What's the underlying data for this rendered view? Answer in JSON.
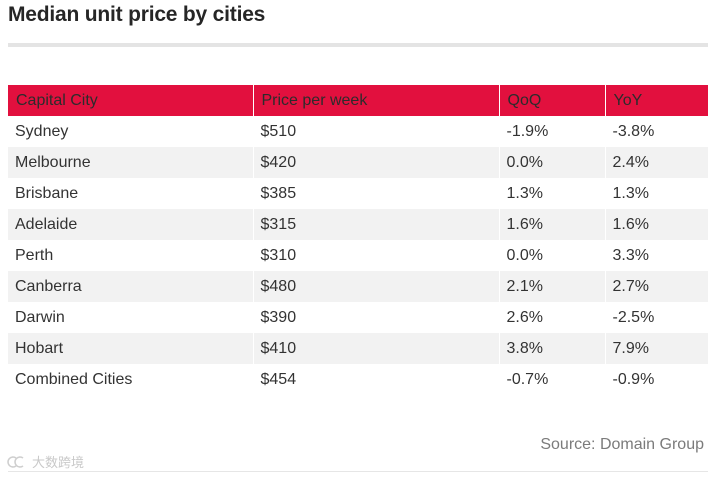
{
  "title": "Median unit price by cities",
  "table": {
    "headers": [
      "Capital City",
      "Price per week",
      "QoQ",
      "YoY"
    ],
    "rows": [
      [
        "Sydney",
        "$510",
        "-1.9%",
        "-3.8%"
      ],
      [
        "Melbourne",
        "$420",
        "0.0%",
        "2.4%"
      ],
      [
        "Brisbane",
        "$385",
        "1.3%",
        "1.3%"
      ],
      [
        "Adelaide",
        "$315",
        "1.6%",
        "1.6%"
      ],
      [
        "Perth",
        "$310",
        "0.0%",
        "3.3%"
      ],
      [
        "Canberra",
        "$480",
        "2.1%",
        "2.7%"
      ],
      [
        "Darwin",
        "$390",
        "2.6%",
        "-2.5%"
      ],
      [
        "Hobart",
        "$410",
        "3.8%",
        "7.9%"
      ],
      [
        "Combined Cities",
        "$454",
        "-0.7%",
        "-0.9%"
      ]
    ]
  },
  "source": "Source: Domain Group",
  "watermark": {
    "text": "大数跨境",
    "icon": "watermark-logo-icon"
  },
  "colors": {
    "header_bg": "#e2103e",
    "stripe_bg": "#f2f2f2"
  }
}
